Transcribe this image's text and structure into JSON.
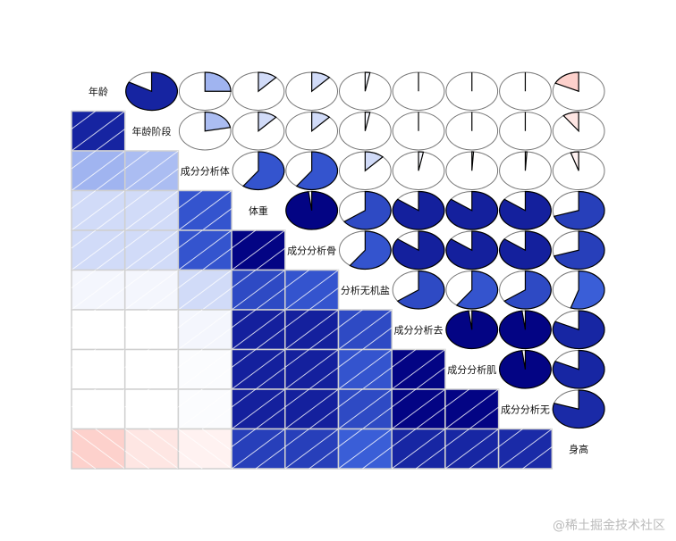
{
  "chart_data": {
    "type": "corrgram",
    "lower_panel": "shade",
    "upper_panel": "pie",
    "color_scale": {
      "-1": "#FF0000",
      "-0.5": "#FA8072",
      "0": "#FFFFFF",
      "0.5": "#4169E1",
      "1": "#000080"
    },
    "variables": [
      "年龄",
      "年龄阶段",
      "成分分析体",
      "体重",
      "成分分析骨",
      "分析无机盐",
      "成分分析去",
      "成分分析肌",
      "成分分析无",
      "身高"
    ],
    "correlations": [
      [
        1,
        0.83,
        0.25,
        0.12,
        0.12,
        0.03,
        0.0,
        0.0,
        0.0,
        -0.18
      ],
      [
        0.83,
        1,
        0.22,
        0.12,
        0.12,
        0.03,
        0.0,
        0.0,
        0.0,
        -0.1
      ],
      [
        0.25,
        0.22,
        1,
        0.6,
        0.6,
        0.12,
        0.03,
        0.01,
        0.01,
        -0.05
      ],
      [
        0.12,
        0.12,
        0.6,
        1,
        0.98,
        0.65,
        0.85,
        0.85,
        0.85,
        0.7
      ],
      [
        0.12,
        0.12,
        0.6,
        0.98,
        1,
        0.6,
        0.85,
        0.85,
        0.85,
        0.7
      ],
      [
        0.03,
        0.03,
        0.12,
        0.65,
        0.6,
        1,
        0.65,
        0.6,
        0.65,
        0.55
      ],
      [
        0.0,
        0.0,
        0.03,
        0.85,
        0.85,
        0.65,
        1,
        0.98,
        0.98,
        0.82
      ],
      [
        0.0,
        0.0,
        0.01,
        0.85,
        0.85,
        0.6,
        0.98,
        1,
        0.98,
        0.82
      ],
      [
        0.0,
        0.0,
        0.01,
        0.85,
        0.85,
        0.65,
        0.98,
        0.98,
        1,
        0.8
      ],
      [
        -0.18,
        -0.1,
        -0.05,
        0.7,
        0.7,
        0.55,
        0.82,
        0.82,
        0.8,
        1
      ]
    ]
  },
  "watermark": "@稀土掘金技术社区"
}
